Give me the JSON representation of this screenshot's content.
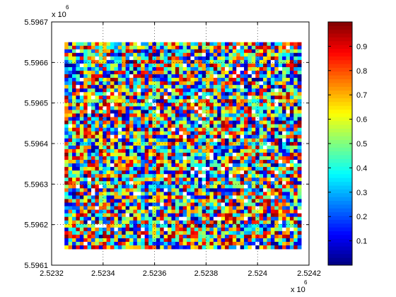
{
  "chart_data": {
    "type": "heatmap",
    "title": "",
    "xlabel": "",
    "ylabel": "",
    "xlim": [
      2.5232,
      2.5242
    ],
    "ylim": [
      5.5961,
      5.5967
    ],
    "x_exponent_label": "x 10",
    "x_exponent_power": "6",
    "y_exponent_label": "x 10",
    "y_exponent_power": "6",
    "x_ticks": [
      2.5232,
      2.5234,
      2.5236,
      2.5238,
      2.524,
      2.5242
    ],
    "x_tick_labels": [
      "2.5232",
      "2.5234",
      "2.5236",
      "2.5238",
      "2.524",
      "2.5242"
    ],
    "y_ticks": [
      5.5961,
      5.5962,
      5.5963,
      5.5964,
      5.5965,
      5.5966,
      5.5967
    ],
    "y_tick_labels": [
      "5.5961",
      "5.5962",
      "5.5963",
      "5.5964",
      "5.5965",
      "5.5966",
      "5.5967"
    ],
    "data_extent": {
      "x": [
        2.52325,
        2.52417
      ],
      "y": [
        5.59614,
        5.59665
      ]
    },
    "grid": {
      "nx": 62,
      "ny": 58,
      "distribution": "random uniform",
      "value_range": [
        0,
        1
      ]
    },
    "grid_lines": "dotted",
    "colorbar": {
      "colormap": "jet",
      "range": [
        0,
        1
      ],
      "ticks": [
        0.1,
        0.2,
        0.3,
        0.4,
        0.5,
        0.6,
        0.7,
        0.8,
        0.9
      ],
      "tick_labels": [
        "0.1",
        "0.2",
        "0.3",
        "0.4",
        "0.5",
        "0.6",
        "0.7",
        "0.8",
        "0.9"
      ],
      "placement": "right"
    },
    "colors": {
      "axis": "#000000",
      "background": "#ffffff",
      "missing_cell": "#ffffff"
    }
  }
}
